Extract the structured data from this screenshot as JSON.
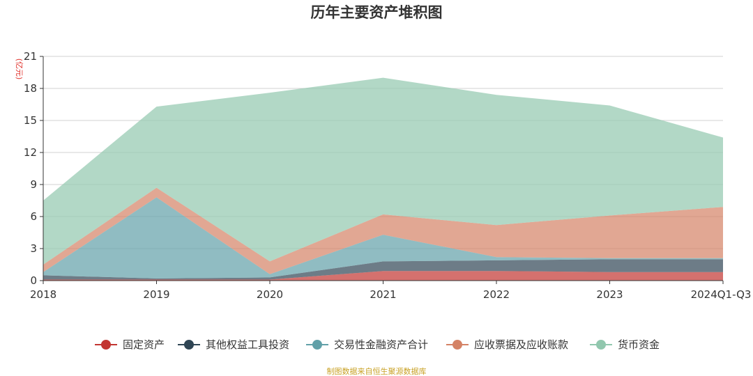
{
  "chart_data": {
    "type": "area",
    "stacked": true,
    "title": "历年主要资产堆积图",
    "unit_label": "(亿元)",
    "categories": [
      "2018",
      "2019",
      "2020",
      "2021",
      "2022",
      "2023",
      "2024Q1-Q3"
    ],
    "y_ticks": [
      "0",
      "3",
      "6",
      "9",
      "12",
      "15",
      "18",
      "21"
    ],
    "ylim": [
      0,
      21
    ],
    "grid": true,
    "legend_position": "bottom",
    "series": [
      {
        "name": "固定资产",
        "color": "#c23531",
        "values": [
          0.1,
          0.1,
          0.1,
          0.9,
          0.9,
          0.8,
          0.8
        ]
      },
      {
        "name": "其他权益工具投资",
        "color": "#2f4554",
        "values": [
          0.4,
          0.1,
          0.2,
          0.9,
          1.0,
          1.2,
          1.2
        ]
      },
      {
        "name": "交易性金融资产合计",
        "color": "#61a0a8",
        "values": [
          0.3,
          7.6,
          0.3,
          2.5,
          0.3,
          0.1,
          0.1
        ]
      },
      {
        "name": "应收票据及应收账款",
        "color": "#d48265",
        "values": [
          0.7,
          0.9,
          1.2,
          1.9,
          3.0,
          4.0,
          4.8
        ]
      },
      {
        "name": "货币资金",
        "color": "#91c7ae",
        "values": [
          6.0,
          7.6,
          15.8,
          12.8,
          12.2,
          10.3,
          6.5
        ]
      }
    ],
    "source": "制图数据来自恒生聚源数据库"
  }
}
